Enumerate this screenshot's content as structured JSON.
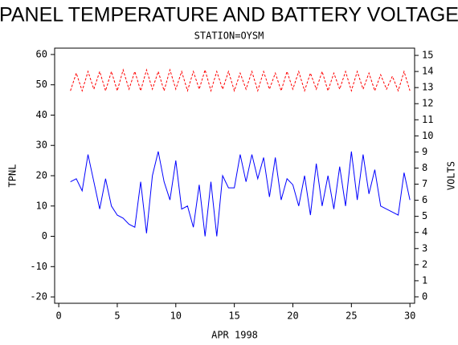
{
  "chart_data": {
    "type": "line",
    "title": "PANEL TEMPERATURE AND BATTERY VOLTAGE",
    "subtitle": "STATION=OYSM",
    "x_label": "APR 1998",
    "y_label": "TPNL",
    "y2_label": "VOLTS",
    "x": [
      1,
      1.5,
      2,
      2.5,
      3,
      3.5,
      4,
      4.5,
      5,
      5.5,
      6,
      6.5,
      7,
      7.5,
      8,
      8.5,
      9,
      9.5,
      10,
      10.5,
      11,
      11.5,
      12,
      12.5,
      13,
      13.5,
      14,
      14.5,
      15,
      15.5,
      16,
      16.5,
      17,
      17.5,
      18,
      18.5,
      19,
      19.5,
      20,
      20.5,
      21,
      21.5,
      22,
      22.5,
      23,
      23.5,
      24,
      24.5,
      25,
      25.5,
      26,
      26.5,
      27,
      27.5,
      28,
      28.5,
      29,
      29.5,
      30
    ],
    "series": [
      {
        "color": "#0000ff",
        "values": [
          18,
          19,
          15,
          27,
          18,
          9,
          19,
          10,
          7,
          6,
          4,
          3,
          18,
          1,
          20,
          28,
          18,
          12,
          25,
          9,
          10,
          3,
          17,
          0,
          18,
          0,
          20,
          16,
          16,
          27,
          18,
          27,
          19,
          26,
          13,
          26,
          12,
          19,
          17,
          10,
          20,
          7,
          24,
          10,
          20,
          9,
          23,
          10,
          28,
          12,
          27,
          14,
          22,
          10,
          9,
          8,
          7,
          21,
          12
        ]
      },
      {
        "color": "#ff0000",
        "axis": "y2",
        "dashed": true,
        "values": [
          12.8,
          13.9,
          12.8,
          14,
          12.9,
          14,
          12.8,
          14,
          12.8,
          14.1,
          12.9,
          14,
          12.8,
          14.1,
          12.9,
          14,
          12.8,
          14.1,
          12.9,
          14,
          12.8,
          14,
          12.9,
          14.1,
          12.8,
          14,
          12.9,
          14,
          12.8,
          13.9,
          12.9,
          14,
          12.8,
          14,
          12.9,
          13.9,
          12.8,
          14,
          12.9,
          14,
          12.8,
          13.9,
          12.9,
          14,
          12.8,
          13.9,
          12.9,
          14,
          12.8,
          14,
          12.9,
          13.9,
          12.8,
          13.8,
          12.9,
          13.7,
          12.8,
          14,
          12.8
        ]
      }
    ],
    "xlim": [
      -0.35,
      30.4
    ],
    "xticks": [
      0,
      5,
      10,
      15,
      20,
      25,
      30
    ],
    "ylim": [
      -22.1,
      62.1
    ],
    "yticks": [
      -20,
      -10,
      0,
      10,
      20,
      30,
      40,
      50,
      60
    ],
    "y2lim": [
      -0.4,
      15.45
    ],
    "y2ticks": [
      0,
      1,
      2,
      3,
      4,
      5,
      6,
      7,
      8,
      9,
      10,
      11,
      12,
      13,
      14,
      15
    ]
  }
}
